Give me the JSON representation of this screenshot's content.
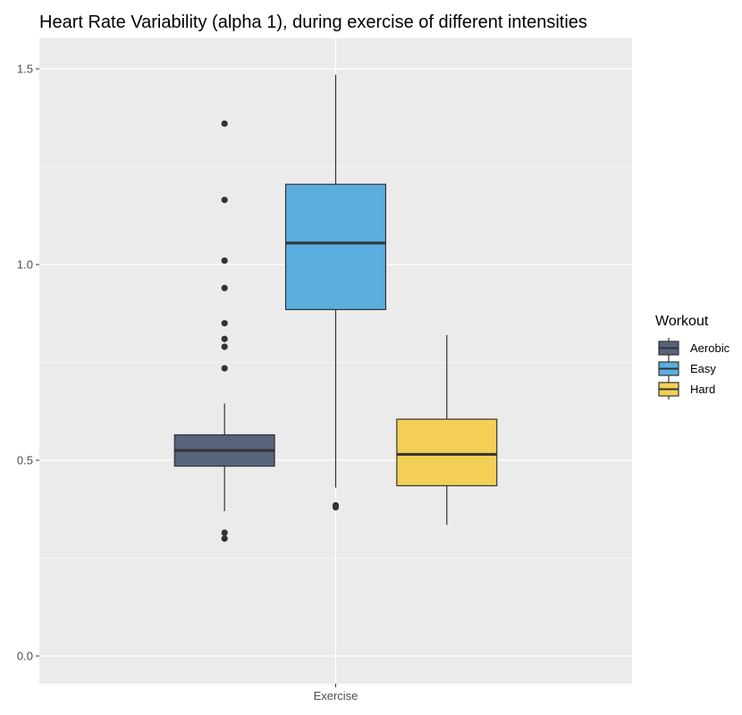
{
  "chart_data": {
    "type": "boxplot",
    "title": "Heart Rate Variability (alpha 1), during exercise of different intensities",
    "xlabel": "",
    "ylabel": "",
    "categories": [
      "Exercise"
    ],
    "ylim": [
      -0.07,
      1.58
    ],
    "y_ticks": [
      {
        "value": 0.0,
        "label": "0.0"
      },
      {
        "value": 0.5,
        "label": "0.5"
      },
      {
        "value": 1.0,
        "label": "1.0"
      },
      {
        "value": 1.5,
        "label": "1.5"
      }
    ],
    "grid": true,
    "legend": {
      "title": "Workout",
      "position": "right"
    },
    "series": [
      {
        "name": "Aerobic",
        "color": "#56637a",
        "whisker_low": 0.37,
        "q1": 0.485,
        "median": 0.525,
        "q3": 0.565,
        "whisker_high": 0.645,
        "outliers": [
          1.36,
          1.165,
          1.01,
          0.94,
          0.85,
          0.81,
          0.79,
          0.735,
          0.315,
          0.3
        ]
      },
      {
        "name": "Easy",
        "color": "#5baee0",
        "whisker_low": 0.43,
        "q1": 0.885,
        "median": 1.055,
        "q3": 1.205,
        "whisker_high": 1.485,
        "outliers": [
          0.385,
          0.38
        ]
      },
      {
        "name": "Hard",
        "color": "#f3d055",
        "whisker_low": 0.335,
        "q1": 0.435,
        "median": 0.515,
        "q3": 0.605,
        "whisker_high": 0.82,
        "outliers": []
      }
    ]
  }
}
